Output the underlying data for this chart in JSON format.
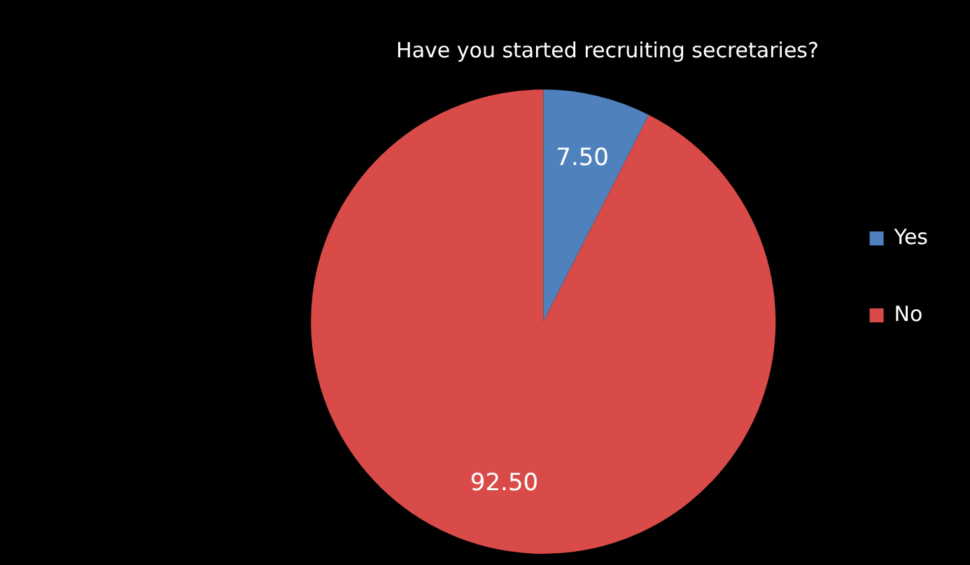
{
  "chart_data": {
    "type": "pie",
    "title": "Have you started recruiting secretaries?",
    "categories": [
      "Yes",
      "No"
    ],
    "values": [
      7.5,
      92.5
    ],
    "colors": [
      "#4f81bd",
      "#d94b48"
    ],
    "value_labels": [
      "7.50",
      "92.50"
    ],
    "legend": "right"
  }
}
